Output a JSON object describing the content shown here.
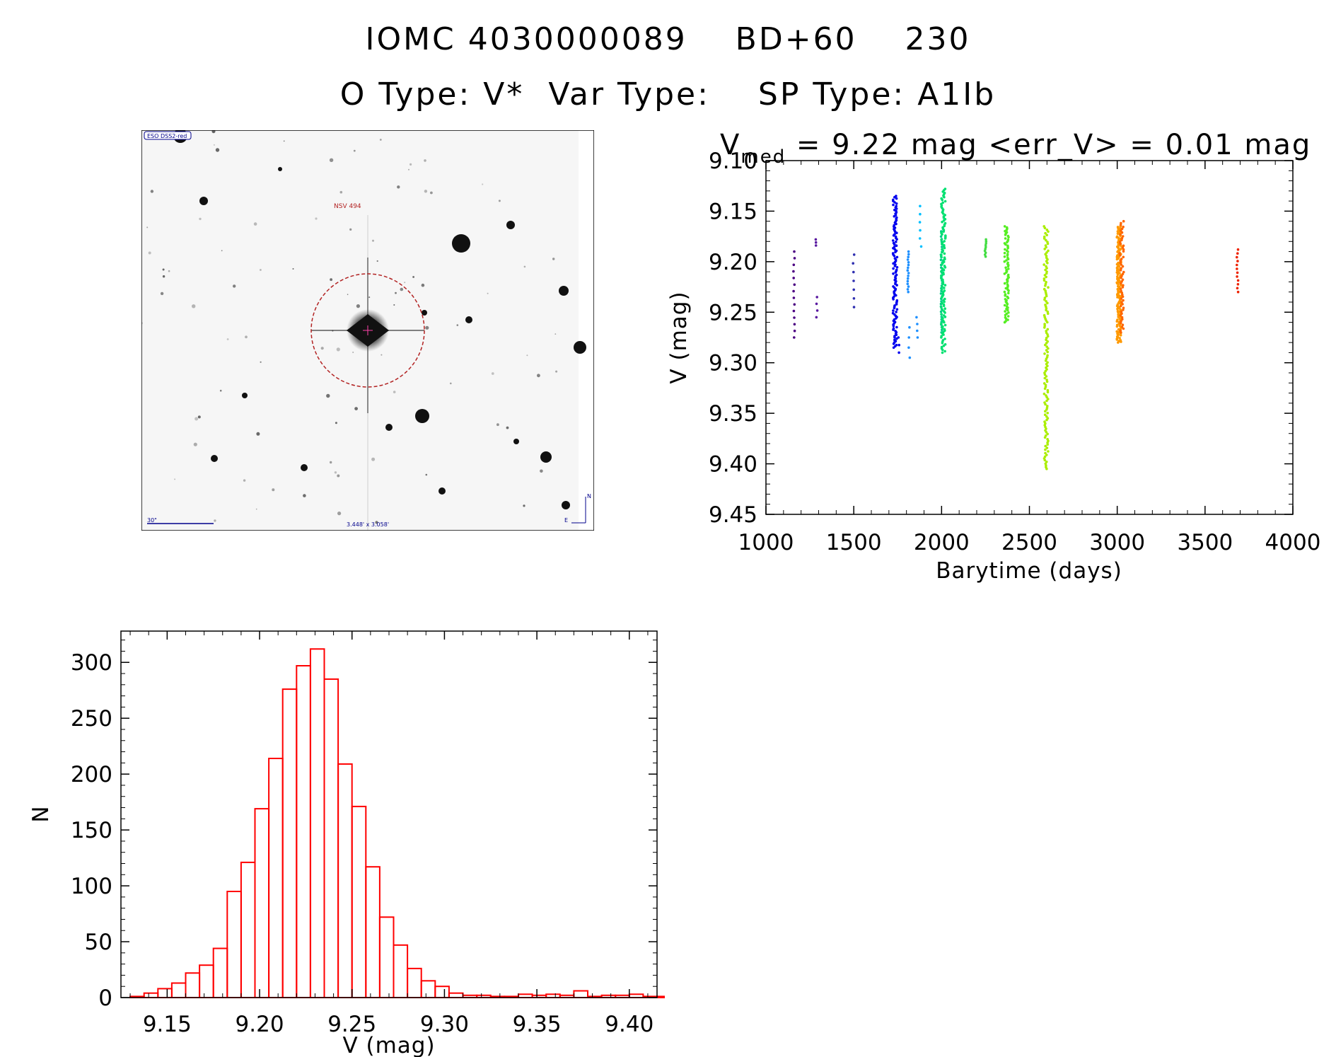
{
  "header": {
    "line1": "IOMC 4030000089    BD+60    230",
    "line2": "O Type: V*  Var Type:    SP Type: A1Ib"
  },
  "finder": {
    "survey_label": "ESO DSS2-red",
    "star_label": "NSV 494",
    "scale_label": "30\"",
    "fov_label": "3.448' x 3.058'",
    "north_label": "N",
    "east_label": "E"
  },
  "colors": {
    "histogram": "#ff0000",
    "circle": "#b22222",
    "text_blue": "#00008b",
    "ink": "#000000"
  },
  "chart_data": [
    {
      "type": "scatter",
      "title_main": "V",
      "title_sub": "med",
      "title_rest": " = 9.22 mag <err_V> = 0.01 mag",
      "xlabel": "Barytime (days)",
      "ylabel": "V (mag)",
      "xlim": [
        1000,
        4000
      ],
      "ylim": [
        9.45,
        9.1
      ],
      "xticks": [
        "1000",
        "1500",
        "2000",
        "2500",
        "3000",
        "3500",
        "4000"
      ],
      "yticks": [
        "9.10",
        "9.15",
        "9.20",
        "9.25",
        "9.30",
        "9.35",
        "9.40",
        "9.45"
      ],
      "groups": [
        {
          "x": 1160,
          "min": 9.19,
          "max": 9.275,
          "color": "#4b0082",
          "n": 14
        },
        {
          "x": 1285,
          "min": 9.178,
          "max": 9.184,
          "color": "#5a1aa0",
          "n": 3
        },
        {
          "x": 1290,
          "min": 9.235,
          "max": 9.255,
          "color": "#5a1aa0",
          "n": 4
        },
        {
          "x": 1500,
          "min": 9.193,
          "max": 9.245,
          "color": "#2f2fb0",
          "n": 7
        },
        {
          "x": 1735,
          "min": 9.135,
          "max": 9.285,
          "color": "#0000ee",
          "n": 120
        },
        {
          "x": 1755,
          "min": 9.275,
          "max": 9.29,
          "color": "#0000ee",
          "n": 3
        },
        {
          "x": 1810,
          "min": 9.19,
          "max": 9.23,
          "color": "#1e90ff",
          "n": 16
        },
        {
          "x": 1815,
          "min": 9.265,
          "max": 9.295,
          "color": "#1e90ff",
          "n": 4
        },
        {
          "x": 1860,
          "min": 9.255,
          "max": 9.275,
          "color": "#1e90ff",
          "n": 4
        },
        {
          "x": 1880,
          "min": 9.145,
          "max": 9.185,
          "color": "#00bfff",
          "n": 6
        },
        {
          "x": 2000,
          "min": 9.17,
          "max": 9.27,
          "color": "#00cc88",
          "n": 40
        },
        {
          "x": 2010,
          "min": 9.128,
          "max": 9.29,
          "color": "#00e070",
          "n": 120
        },
        {
          "x": 2250,
          "min": 9.178,
          "max": 9.195,
          "color": "#44dd44",
          "n": 10
        },
        {
          "x": 2370,
          "min": 9.165,
          "max": 9.26,
          "color": "#55ee22",
          "n": 80
        },
        {
          "x": 2595,
          "min": 9.165,
          "max": 9.405,
          "color": "#aaee00",
          "n": 140
        },
        {
          "x": 3010,
          "min": 9.165,
          "max": 9.28,
          "color": "#ff9900",
          "n": 160
        },
        {
          "x": 3025,
          "min": 9.16,
          "max": 9.27,
          "color": "#ff6600",
          "n": 60
        },
        {
          "x": 3685,
          "min": 9.188,
          "max": 9.23,
          "color": "#ee2200",
          "n": 12
        }
      ]
    },
    {
      "type": "bar",
      "xlabel": "V (mag)",
      "ylabel": "N",
      "xlim": [
        9.125,
        9.415
      ],
      "ylim": [
        0,
        328
      ],
      "xticks": [
        "9.15",
        "9.20",
        "9.25",
        "9.30",
        "9.35",
        "9.40"
      ],
      "yticks": [
        "0",
        "50",
        "100",
        "150",
        "200",
        "250",
        "300"
      ],
      "bin_start": 9.13,
      "bin_width": 0.0075,
      "values": [
        1,
        4,
        8,
        13,
        22,
        29,
        44,
        95,
        121,
        169,
        214,
        276,
        297,
        312,
        285,
        209,
        171,
        117,
        72,
        47,
        26,
        15,
        10,
        4,
        2,
        2,
        1,
        1,
        3,
        2,
        3,
        2,
        6,
        1,
        2,
        2,
        3,
        1,
        1,
        1
      ]
    }
  ]
}
